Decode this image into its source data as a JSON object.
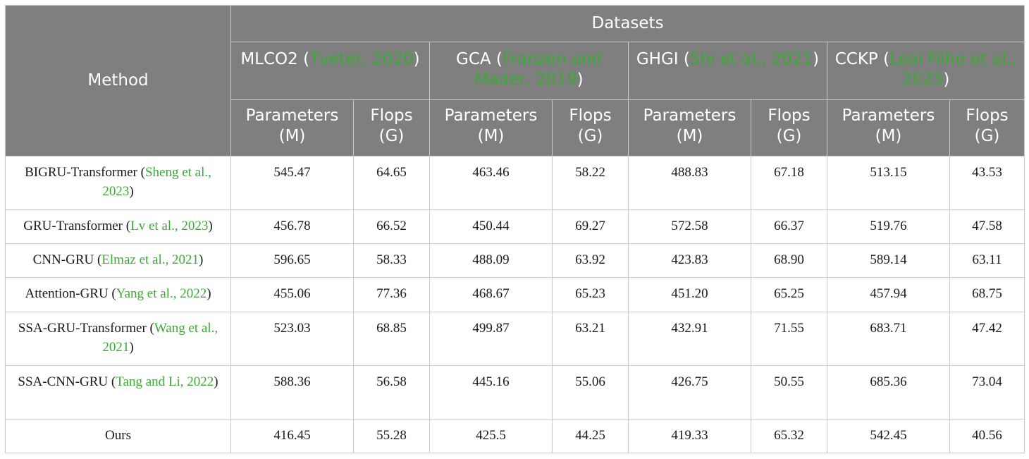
{
  "table": {
    "method_header": "Method",
    "datasets_header": "Datasets",
    "datasets": [
      {
        "name": "MLCO2 (",
        "cite": "Tveter, 2020",
        "close": ")"
      },
      {
        "name": "GCA (",
        "cite": "Franzen and Mader, 2019",
        "close": ")"
      },
      {
        "name": "GHGI (",
        "cite": "Shi et al., 2021",
        "close": ")"
      },
      {
        "name": "CCKP (",
        "cite": "Leal Filho et al., 2023",
        "close": ")"
      }
    ],
    "col_params": "Parameters (M)",
    "col_flops": "Flops (G)",
    "rows": [
      {
        "method": "BIGRU-Transformer (",
        "cite": "Sheng et al., 2023",
        "close": ")",
        "values": [
          "545.47",
          "64.65",
          "463.46",
          "58.22",
          "488.83",
          "67.18",
          "513.15",
          "43.53"
        ]
      },
      {
        "method": "GRU-Transformer (",
        "cite": "Lv et al., 2023",
        "close": ")",
        "values": [
          "456.78",
          "66.52",
          "450.44",
          "69.27",
          "572.58",
          "66.37",
          "519.76",
          "47.58"
        ]
      },
      {
        "method": "CNN-GRU (",
        "cite": "Elmaz et al., 2021",
        "close": ")",
        "values": [
          "596.65",
          "58.33",
          "488.09",
          "63.92",
          "423.83",
          "68.90",
          "589.14",
          "63.11"
        ]
      },
      {
        "method": "Attention-GRU (",
        "cite": "Yang et al., 2022",
        "close": ")",
        "values": [
          "455.06",
          "77.36",
          "468.67",
          "65.23",
          "451.20",
          "65.25",
          "457.94",
          "68.75"
        ]
      },
      {
        "method": "SSA-GRU-Transformer (",
        "cite": "Wang et al., 2021",
        "close": ")",
        "values": [
          "523.03",
          "68.85",
          "499.87",
          "63.21",
          "432.91",
          "71.55",
          "683.71",
          "47.42"
        ]
      },
      {
        "method": "SSA-CNN-GRU (",
        "cite": "Tang and Li, 2022",
        "close": ")",
        "values": [
          "588.36",
          "56.58",
          "445.16",
          "55.06",
          "426.75",
          "50.55",
          "685.36",
          "73.04"
        ]
      },
      {
        "method": "Ours",
        "cite": "",
        "close": "",
        "values": [
          "416.45",
          "55.28",
          "425.5",
          "44.25",
          "419.33",
          "65.32",
          "542.45",
          "40.56"
        ]
      }
    ]
  },
  "colors": {
    "header_bg": "#7f7f7f",
    "citation": "#3aaa35",
    "border": "#c9c9c9"
  }
}
